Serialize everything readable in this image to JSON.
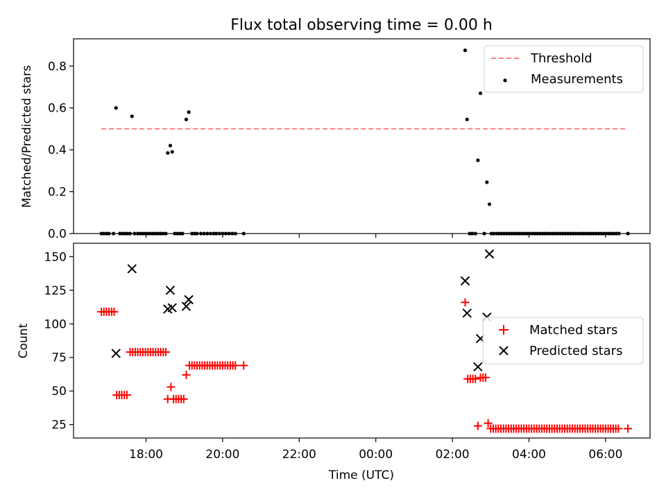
{
  "title": "Flux total observing time = 0.00 h",
  "xlabel": "Time (UTC)",
  "x_ticks": [
    "18:00",
    "20:00",
    "22:00",
    "00:00",
    "02:00",
    "04:00",
    "06:00"
  ],
  "colors": {
    "threshold": "#ff7f7f",
    "measurements": "#000000",
    "matched": "#ff0000",
    "predicted": "#000000"
  },
  "chart_data": [
    {
      "type": "scatter",
      "panel": "top",
      "ylabel": "Matched/Predicted stars",
      "ylim": [
        0,
        0.93
      ],
      "y_ticks": [
        "0.0",
        "0.2",
        "0.4",
        "0.6",
        "0.8"
      ],
      "legend": {
        "placement": "top-right",
        "entries": [
          "Threshold",
          "Measurements"
        ]
      },
      "threshold": {
        "name": "Threshold",
        "x_range": [
          "16:50",
          "06:35"
        ],
        "y": 0.5,
        "style": "dashed"
      },
      "series": [
        {
          "name": "Measurements",
          "points": [
            [
              "16:50",
              0
            ],
            [
              "16:54",
              0
            ],
            [
              "16:58",
              0
            ],
            [
              "17:02",
              0
            ],
            [
              "17:09",
              0
            ],
            [
              "17:13",
              0.6
            ],
            [
              "17:19",
              0
            ],
            [
              "17:23",
              0
            ],
            [
              "17:27",
              0
            ],
            [
              "17:31",
              0
            ],
            [
              "17:35",
              0
            ],
            [
              "17:38",
              0.56
            ],
            [
              "17:42",
              0
            ],
            [
              "17:47",
              0
            ],
            [
              "17:51",
              0
            ],
            [
              "17:55",
              0
            ],
            [
              "17:59",
              0
            ],
            [
              "18:03",
              0
            ],
            [
              "18:07",
              0
            ],
            [
              "18:11",
              0
            ],
            [
              "18:15",
              0
            ],
            [
              "18:19",
              0
            ],
            [
              "18:23",
              0
            ],
            [
              "18:27",
              0
            ],
            [
              "18:31",
              0
            ],
            [
              "18:34",
              0.385
            ],
            [
              "18:38",
              0.42
            ],
            [
              "18:41",
              0.39
            ],
            [
              "18:45",
              0
            ],
            [
              "18:49",
              0
            ],
            [
              "18:53",
              0
            ],
            [
              "18:57",
              0
            ],
            [
              "19:03",
              0.545
            ],
            [
              "19:07",
              0.58
            ],
            [
              "19:12",
              0
            ],
            [
              "19:16",
              0
            ],
            [
              "19:20",
              0
            ],
            [
              "19:26",
              0
            ],
            [
              "19:31",
              0
            ],
            [
              "19:36",
              0
            ],
            [
              "19:41",
              0
            ],
            [
              "19:46",
              0
            ],
            [
              "19:50",
              0
            ],
            [
              "19:55",
              0
            ],
            [
              "20:00",
              0
            ],
            [
              "20:05",
              0
            ],
            [
              "20:10",
              0
            ],
            [
              "20:15",
              0
            ],
            [
              "20:20",
              0
            ],
            [
              "20:33",
              0
            ],
            [
              "02:20",
              0.875
            ],
            [
              "02:23",
              0.545
            ],
            [
              "02:27",
              0
            ],
            [
              "02:31",
              0
            ],
            [
              "02:36",
              0
            ],
            [
              "02:40",
              0.35
            ],
            [
              "02:44",
              0.67
            ],
            [
              "02:50",
              0
            ],
            [
              "02:54",
              0.245
            ],
            [
              "02:58",
              0.14
            ],
            [
              "03:01",
              0
            ],
            [
              "03:05",
              0
            ],
            [
              "03:09",
              0
            ],
            [
              "03:13",
              0
            ],
            [
              "03:17",
              0
            ],
            [
              "03:21",
              0
            ],
            [
              "03:25",
              0
            ],
            [
              "03:29",
              0
            ],
            [
              "03:33",
              0
            ],
            [
              "03:37",
              0
            ],
            [
              "03:41",
              0
            ],
            [
              "03:45",
              0
            ],
            [
              "03:49",
              0
            ],
            [
              "03:53",
              0
            ],
            [
              "03:57",
              0
            ],
            [
              "04:01",
              0
            ],
            [
              "04:05",
              0
            ],
            [
              "04:09",
              0
            ],
            [
              "04:13",
              0
            ],
            [
              "04:17",
              0
            ],
            [
              "04:21",
              0
            ],
            [
              "04:25",
              0
            ],
            [
              "04:29",
              0
            ],
            [
              "04:33",
              0
            ],
            [
              "04:37",
              0
            ],
            [
              "04:41",
              0
            ],
            [
              "04:45",
              0
            ],
            [
              "04:49",
              0
            ],
            [
              "04:53",
              0
            ],
            [
              "04:57",
              0
            ],
            [
              "05:01",
              0
            ],
            [
              "05:05",
              0
            ],
            [
              "05:09",
              0
            ],
            [
              "05:13",
              0
            ],
            [
              "05:17",
              0
            ],
            [
              "05:21",
              0
            ],
            [
              "05:25",
              0
            ],
            [
              "05:29",
              0
            ],
            [
              "05:33",
              0
            ],
            [
              "05:37",
              0
            ],
            [
              "05:41",
              0
            ],
            [
              "05:45",
              0
            ],
            [
              "05:49",
              0
            ],
            [
              "05:53",
              0
            ],
            [
              "05:57",
              0
            ],
            [
              "06:01",
              0
            ],
            [
              "06:05",
              0
            ],
            [
              "06:09",
              0
            ],
            [
              "06:13",
              0
            ],
            [
              "06:17",
              0
            ],
            [
              "06:21",
              0
            ],
            [
              "06:35",
              0
            ]
          ]
        }
      ]
    },
    {
      "type": "scatter",
      "panel": "bottom",
      "ylabel": "Count",
      "ylim": [
        15,
        160
      ],
      "y_ticks": [
        "25",
        "50",
        "75",
        "100",
        "125",
        "150"
      ],
      "legend": {
        "placement": "center-right",
        "entries": [
          "Matched stars",
          "Predicted stars"
        ]
      },
      "series": [
        {
          "name": "Matched stars",
          "marker": "plus",
          "points": [
            [
              "16:50",
              109
            ],
            [
              "16:54",
              109
            ],
            [
              "16:58",
              109
            ],
            [
              "17:02",
              109
            ],
            [
              "17:06",
              109
            ],
            [
              "17:10",
              109
            ],
            [
              "17:14",
              47
            ],
            [
              "17:18",
              47
            ],
            [
              "17:22",
              47
            ],
            [
              "17:26",
              47
            ],
            [
              "17:30",
              47
            ],
            [
              "17:35",
              79
            ],
            [
              "17:39",
              79
            ],
            [
              "17:43",
              79
            ],
            [
              "17:47",
              79
            ],
            [
              "17:51",
              79
            ],
            [
              "17:55",
              79
            ],
            [
              "17:59",
              79
            ],
            [
              "18:03",
              79
            ],
            [
              "18:07",
              79
            ],
            [
              "18:11",
              79
            ],
            [
              "18:15",
              79
            ],
            [
              "18:19",
              79
            ],
            [
              "18:23",
              79
            ],
            [
              "18:27",
              79
            ],
            [
              "18:31",
              79
            ],
            [
              "18:34",
              44
            ],
            [
              "18:39",
              53
            ],
            [
              "18:43",
              44
            ],
            [
              "18:47",
              44
            ],
            [
              "18:51",
              44
            ],
            [
              "18:55",
              44
            ],
            [
              "18:59",
              44
            ],
            [
              "19:03",
              62
            ],
            [
              "19:08",
              69
            ],
            [
              "19:12",
              69
            ],
            [
              "19:16",
              69
            ],
            [
              "19:20",
              69
            ],
            [
              "19:24",
              69
            ],
            [
              "19:28",
              69
            ],
            [
              "19:32",
              69
            ],
            [
              "19:36",
              69
            ],
            [
              "19:40",
              69
            ],
            [
              "19:44",
              69
            ],
            [
              "19:48",
              69
            ],
            [
              "19:52",
              69
            ],
            [
              "19:56",
              69
            ],
            [
              "20:00",
              69
            ],
            [
              "20:04",
              69
            ],
            [
              "20:08",
              69
            ],
            [
              "20:12",
              69
            ],
            [
              "20:16",
              69
            ],
            [
              "20:20",
              69
            ],
            [
              "20:33",
              69
            ],
            [
              "02:20",
              116
            ],
            [
              "02:24",
              59
            ],
            [
              "02:28",
              59
            ],
            [
              "02:32",
              59
            ],
            [
              "02:36",
              59
            ],
            [
              "02:40",
              24
            ],
            [
              "02:44",
              60
            ],
            [
              "02:48",
              60
            ],
            [
              "02:52",
              60
            ],
            [
              "02:56",
              26
            ],
            [
              "03:00",
              22
            ],
            [
              "03:04",
              22
            ],
            [
              "03:08",
              22
            ],
            [
              "03:12",
              22
            ],
            [
              "03:16",
              22
            ],
            [
              "03:20",
              22
            ],
            [
              "03:24",
              22
            ],
            [
              "03:28",
              22
            ],
            [
              "03:32",
              22
            ],
            [
              "03:36",
              22
            ],
            [
              "03:40",
              22
            ],
            [
              "03:44",
              22
            ],
            [
              "03:48",
              22
            ],
            [
              "03:52",
              22
            ],
            [
              "03:56",
              22
            ],
            [
              "04:00",
              22
            ],
            [
              "04:04",
              22
            ],
            [
              "04:08",
              22
            ],
            [
              "04:12",
              22
            ],
            [
              "04:16",
              22
            ],
            [
              "04:20",
              22
            ],
            [
              "04:24",
              22
            ],
            [
              "04:28",
              22
            ],
            [
              "04:32",
              22
            ],
            [
              "04:36",
              22
            ],
            [
              "04:40",
              22
            ],
            [
              "04:44",
              22
            ],
            [
              "04:48",
              22
            ],
            [
              "04:52",
              22
            ],
            [
              "04:56",
              22
            ],
            [
              "05:00",
              22
            ],
            [
              "05:04",
              22
            ],
            [
              "05:08",
              22
            ],
            [
              "05:12",
              22
            ],
            [
              "05:16",
              22
            ],
            [
              "05:20",
              22
            ],
            [
              "05:24",
              22
            ],
            [
              "05:28",
              22
            ],
            [
              "05:32",
              22
            ],
            [
              "05:36",
              22
            ],
            [
              "05:40",
              22
            ],
            [
              "05:44",
              22
            ],
            [
              "05:48",
              22
            ],
            [
              "05:52",
              22
            ],
            [
              "05:56",
              22
            ],
            [
              "06:00",
              22
            ],
            [
              "06:04",
              22
            ],
            [
              "06:08",
              22
            ],
            [
              "06:12",
              22
            ],
            [
              "06:16",
              22
            ],
            [
              "06:20",
              22
            ],
            [
              "06:35",
              22
            ]
          ]
        },
        {
          "name": "Predicted stars",
          "marker": "x",
          "points": [
            [
              "17:13",
              78
            ],
            [
              "17:38",
              141
            ],
            [
              "18:34",
              111
            ],
            [
              "18:38",
              125
            ],
            [
              "18:41",
              112
            ],
            [
              "19:03",
              113
            ],
            [
              "19:07",
              118
            ],
            [
              "02:20",
              132
            ],
            [
              "02:23",
              108
            ],
            [
              "02:40",
              68
            ],
            [
              "02:44",
              89
            ],
            [
              "02:54",
              105
            ],
            [
              "02:58",
              152
            ]
          ]
        }
      ]
    }
  ]
}
